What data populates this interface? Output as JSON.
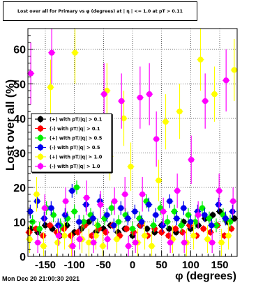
{
  "title": "Lost over all for Primary vs φ (degrees) at | η | <= 1.0 at pT > 0.11",
  "timestamp": "Mon Dec 20 21:00:30 2021",
  "chart_data": {
    "type": "scatter",
    "title": "Lost over all for Primary vs φ (degrees) at | η | <= 1.0 at pT > 0.11",
    "xlabel": "φ (degrees)",
    "ylabel": "Lost over all (%)",
    "xlim": [
      -180,
      180
    ],
    "ylim": [
      0,
      66
    ],
    "x_ticks": [
      -150,
      -100,
      -50,
      0,
      50,
      100,
      150
    ],
    "y_ticks": [
      0,
      10,
      20,
      30,
      40,
      50,
      60
    ],
    "grid": true,
    "legend_position": "left-middle",
    "series": [
      {
        "name": "(+) with pT/|q| > 0.1",
        "color": "#000000",
        "x": [
          -175,
          -163,
          -150,
          -138,
          -125,
          -113,
          -100,
          -88,
          -75,
          -63,
          -50,
          -38,
          -25,
          -13,
          0,
          13,
          25,
          38,
          50,
          63,
          75,
          88,
          100,
          113,
          125,
          138,
          150,
          163,
          175
        ],
        "y": [
          8,
          7,
          9,
          8,
          6,
          9,
          7,
          8,
          10,
          7,
          8,
          9,
          7,
          8,
          6,
          9,
          8,
          7,
          9,
          8,
          7,
          10,
          8,
          9,
          11,
          12,
          13,
          10,
          11
        ],
        "err": [
          1,
          1,
          1,
          1,
          1,
          1,
          1,
          1,
          1,
          1,
          1,
          1,
          1,
          1,
          1,
          1,
          1,
          1,
          1,
          1,
          1,
          1,
          1,
          1,
          1,
          1,
          1,
          1,
          1
        ]
      },
      {
        "name": "(-) with pT/|q| > 0.1",
        "color": "#ff0000",
        "x": [
          -178,
          -166,
          -154,
          -142,
          -130,
          -118,
          -106,
          -94,
          -82,
          -70,
          -58,
          -46,
          -34,
          -22,
          -10,
          2,
          14,
          26,
          38,
          50,
          62,
          74,
          86,
          98,
          110,
          122,
          134,
          146,
          158,
          170
        ],
        "y": [
          7,
          8,
          6,
          9,
          7,
          8,
          6,
          7,
          9,
          6,
          8,
          7,
          9,
          6,
          8,
          7,
          9,
          6,
          8,
          7,
          6,
          8,
          7,
          9,
          6,
          8,
          7,
          9,
          6,
          8
        ],
        "err": [
          1,
          1,
          1,
          1,
          1,
          1,
          1,
          1,
          1,
          1,
          1,
          1,
          1,
          1,
          1,
          1,
          1,
          1,
          1,
          1,
          1,
          1,
          1,
          1,
          1,
          1,
          1,
          1,
          1,
          1
        ]
      },
      {
        "name": "(+) with pT/|q| > 0.5",
        "color": "#00ee00",
        "x": [
          -172,
          -160,
          -148,
          -136,
          -124,
          -112,
          -100,
          -96,
          -84,
          -72,
          -60,
          -48,
          -36,
          -24,
          -12,
          0,
          12,
          24,
          36,
          48,
          60,
          72,
          84,
          96,
          108,
          120,
          132,
          144,
          156,
          168
        ],
        "y": [
          10,
          8,
          14,
          12,
          9,
          11,
          13,
          20,
          10,
          12,
          9,
          11,
          14,
          10,
          12,
          8,
          11,
          16,
          9,
          14,
          10,
          13,
          9,
          12,
          10,
          14,
          11,
          9,
          12,
          10
        ],
        "err": [
          2,
          2,
          2,
          2,
          2,
          2,
          2,
          2,
          2,
          2,
          2,
          2,
          2,
          2,
          2,
          2,
          2,
          2,
          2,
          2,
          2,
          2,
          2,
          2,
          2,
          2,
          2,
          2,
          2,
          2
        ]
      },
      {
        "name": "(-) with pT/|q| > 0.5",
        "color": "#0000ee",
        "x": [
          -176,
          -164,
          -152,
          -140,
          -128,
          -116,
          -104,
          -92,
          -80,
          -68,
          -56,
          -44,
          -32,
          -20,
          -8,
          4,
          16,
          28,
          40,
          52,
          64,
          76,
          88,
          100,
          112,
          124,
          136,
          148,
          160,
          172
        ],
        "y": [
          13,
          16,
          11,
          14,
          9,
          12,
          19,
          10,
          15,
          11,
          16,
          12,
          9,
          14,
          11,
          13,
          10,
          15,
          12,
          9,
          16,
          11,
          14,
          10,
          13,
          12,
          9,
          15,
          11,
          13
        ],
        "err": [
          2,
          2,
          2,
          2,
          2,
          2,
          2,
          2,
          2,
          2,
          2,
          2,
          2,
          2,
          2,
          2,
          2,
          2,
          2,
          2,
          2,
          2,
          2,
          2,
          2,
          2,
          2,
          2,
          2,
          2
        ]
      },
      {
        "name": "(+) with pT/|q| > 1.0",
        "color": "#ffff00",
        "x": [
          -177,
          -165,
          -153,
          -141,
          -129,
          -117,
          -105,
          -99,
          -87,
          -75,
          -63,
          -51,
          -44,
          -39,
          -27,
          -15,
          -3,
          9,
          21,
          33,
          45,
          57,
          69,
          81,
          93,
          105,
          117,
          129,
          141,
          153,
          165,
          175
        ],
        "y": [
          5,
          18,
          3,
          49,
          4,
          6,
          3,
          59,
          5,
          4,
          6,
          3,
          48,
          29,
          5,
          40,
          26,
          4,
          6,
          3,
          22,
          39,
          5,
          42,
          4,
          6,
          57,
          5,
          47,
          4,
          6,
          54
        ],
        "err": [
          4,
          5,
          4,
          8,
          4,
          4,
          4,
          9,
          4,
          4,
          4,
          4,
          8,
          7,
          4,
          8,
          7,
          4,
          4,
          4,
          6,
          8,
          4,
          8,
          4,
          4,
          9,
          4,
          8,
          4,
          4,
          9
        ]
      },
      {
        "name": "(-) with pT/|q| > 1.0",
        "color": "#ff00ff",
        "x": [
          -175,
          -163,
          -151,
          -139,
          -127,
          -115,
          -103,
          -91,
          -79,
          -67,
          -55,
          -49,
          -43,
          -31,
          -19,
          -13,
          -7,
          5,
          13,
          17,
          29,
          41,
          53,
          65,
          77,
          89,
          101,
          113,
          125,
          137,
          149,
          161,
          173
        ],
        "y": [
          53,
          4,
          14,
          59,
          6,
          16,
          3,
          5,
          17,
          4,
          15,
          47,
          5,
          16,
          45,
          18,
          3,
          4,
          46,
          18,
          47,
          34,
          13,
          4,
          19,
          4,
          28,
          12,
          45,
          4,
          19,
          51,
          16
        ],
        "err": [
          9,
          3,
          4,
          9,
          3,
          4,
          3,
          3,
          5,
          3,
          4,
          9,
          3,
          4,
          8,
          5,
          3,
          3,
          9,
          5,
          9,
          8,
          4,
          3,
          5,
          3,
          7,
          4,
          8,
          3,
          5,
          9,
          4
        ]
      }
    ]
  }
}
